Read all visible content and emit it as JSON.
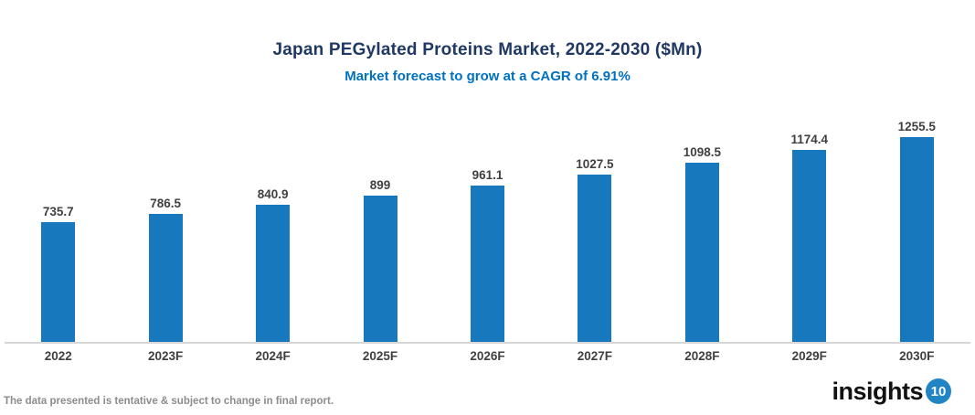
{
  "chart_data": {
    "type": "bar",
    "title": "Japan PEGylated Proteins Market, 2022-2030 ($Mn)",
    "subtitle": "Market forecast to grow at a CAGR of 6.91%",
    "categories": [
      "2022",
      "2023F",
      "2024F",
      "2025F",
      "2026F",
      "2027F",
      "2028F",
      "2029F",
      "2030F"
    ],
    "values": [
      735.7,
      786.5,
      840.9,
      899,
      961.1,
      1027.5,
      1098.5,
      1174.4,
      1255.5
    ],
    "xlabel": "",
    "ylabel": "",
    "ylim": [
      0,
      1300
    ],
    "grid": false,
    "legend_position": "none",
    "value_labels_shown": true,
    "bar_color": "#1878BE"
  },
  "footer": {
    "disclaimer": "The data presented is tentative & subject to change in final report.",
    "logo": {
      "text": "insights",
      "number": "10"
    }
  },
  "colors": {
    "title": "#1F3864",
    "subtitle": "#0070C0",
    "label": "#404040",
    "axis_line": "#D6D6D6",
    "bar": "#1878BE",
    "footer_text": "#8C8C8C",
    "logo_circle": "#2185C5"
  }
}
